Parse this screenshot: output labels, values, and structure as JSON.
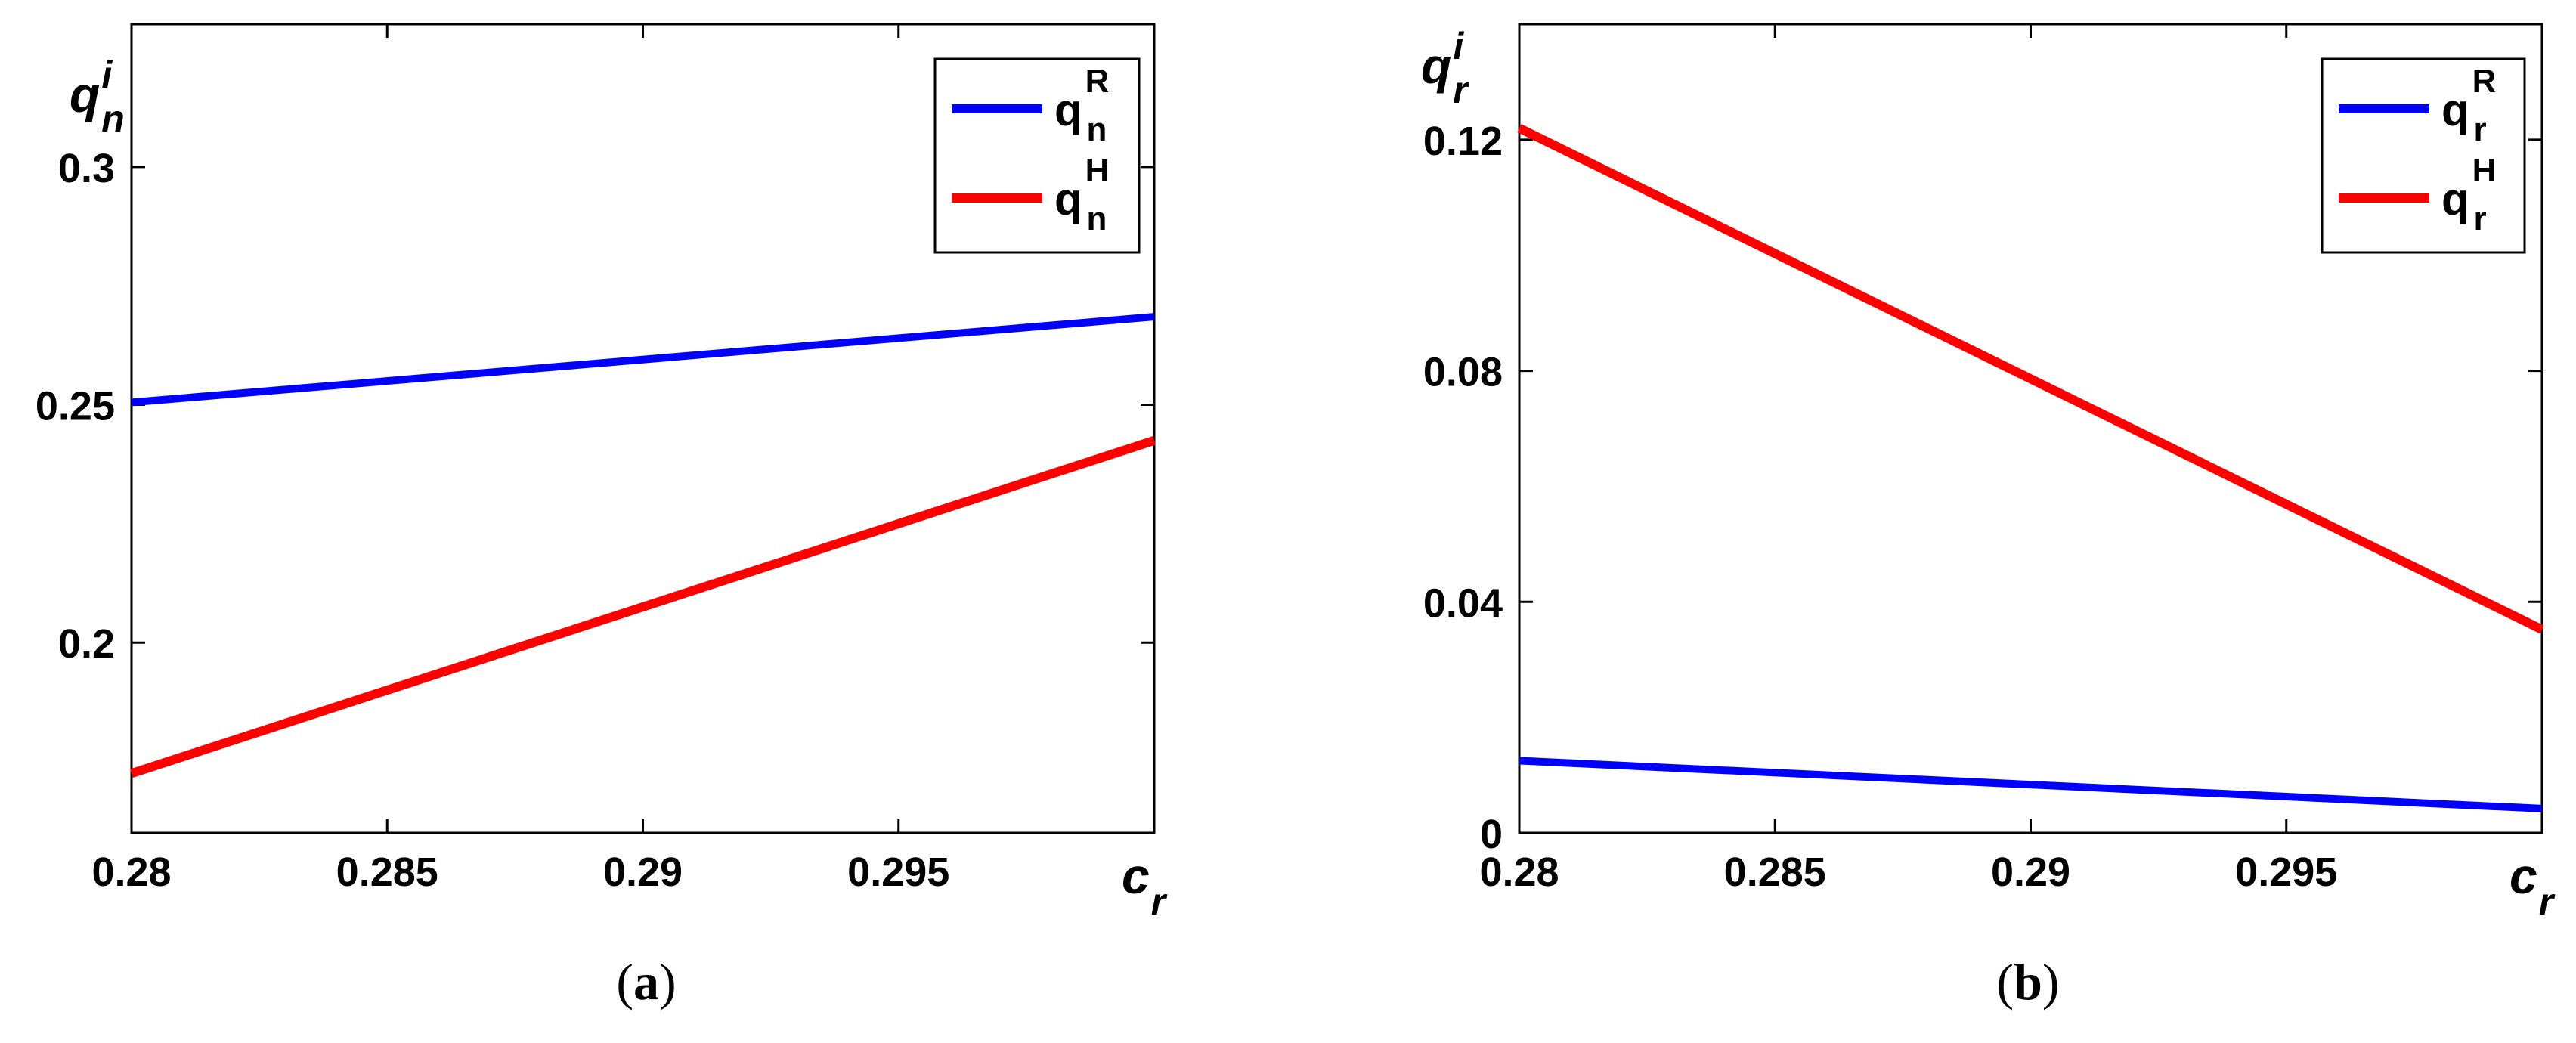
{
  "chart_data": [
    {
      "type": "line",
      "panel_label": {
        "open": "(",
        "letter": "a",
        "close": ")"
      },
      "ylabel": {
        "base": "q",
        "sup": "i",
        "sub": "n"
      },
      "xlabel": {
        "base": "c",
        "sub": "r"
      },
      "xlim": [
        0.28,
        0.3
      ],
      "ylim": [
        0.16,
        0.33
      ],
      "xticks": [
        0.28,
        0.285,
        0.29,
        0.295
      ],
      "xtick_labels": [
        "0.28",
        "0.285",
        "0.29",
        "0.295"
      ],
      "yticks": [
        0.2,
        0.25,
        0.3
      ],
      "ytick_labels": [
        "0.2",
        "0.25",
        "0.3"
      ],
      "legend_position": "top-right",
      "grid": false,
      "series": [
        {
          "legend": {
            "base": "q",
            "sub": "n",
            "sup": "R"
          },
          "color": "#0000ff",
          "x": [
            0.28,
            0.3
          ],
          "y": [
            0.2505,
            0.2685
          ]
        },
        {
          "legend": {
            "base": "q",
            "sub": "n",
            "sup": "H"
          },
          "color": "#ff0000",
          "x": [
            0.28,
            0.3
          ],
          "y": [
            0.1725,
            0.2425
          ]
        }
      ]
    },
    {
      "type": "line",
      "panel_label": {
        "open": "(",
        "letter": "b",
        "close": ")"
      },
      "ylabel": {
        "base": "q",
        "sup": "i",
        "sub": "r"
      },
      "xlabel": {
        "base": "c",
        "sub": "r"
      },
      "xlim": [
        0.28,
        0.3
      ],
      "ylim": [
        0,
        0.14
      ],
      "xticks": [
        0.28,
        0.285,
        0.29,
        0.295
      ],
      "xtick_labels": [
        "0.28",
        "0.285",
        "0.29",
        "0.295"
      ],
      "yticks": [
        0,
        0.04,
        0.08,
        0.12
      ],
      "ytick_labels": [
        "0",
        "0.04",
        "0.08",
        "0.12"
      ],
      "legend_position": "top-right",
      "grid": false,
      "series": [
        {
          "legend": {
            "base": "q",
            "sub": "r",
            "sup": "R"
          },
          "color": "#0000ff",
          "x": [
            0.28,
            0.3
          ],
          "y": [
            0.0125,
            0.0042
          ]
        },
        {
          "legend": {
            "base": "q",
            "sub": "r",
            "sup": "H"
          },
          "color": "#ff0000",
          "x": [
            0.28,
            0.3
          ],
          "y": [
            0.122,
            0.0352
          ]
        }
      ]
    }
  ]
}
